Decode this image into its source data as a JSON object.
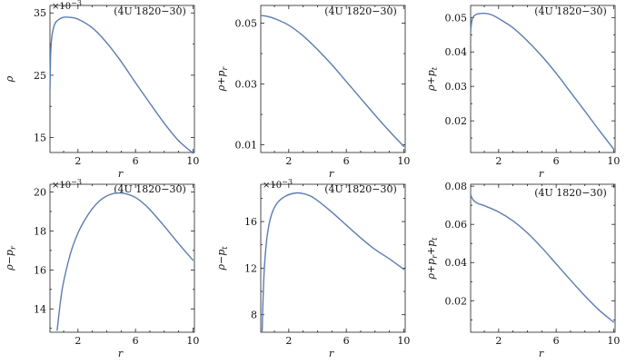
{
  "chart_data": [
    {
      "type": "line",
      "annotation": "(4U 1820−30)",
      "ylabel": "ρ",
      "xlabel": "r",
      "multiplier": "×10",
      "multiplier_exp": "−3",
      "xlim": [
        0.05,
        10.1
      ],
      "ylim": [
        12.6,
        36.2
      ],
      "xticks": [
        2,
        6,
        10
      ],
      "yticks": [
        15,
        25,
        35
      ],
      "series": [
        {
          "x": [
            0.05,
            0.1,
            0.2,
            0.4,
            0.7,
            1.0,
            1.4,
            2.0,
            3.0,
            4.0,
            5.0,
            6.0,
            7.0,
            8.0,
            9.0,
            10.0
          ],
          "y": [
            22.5,
            28.5,
            31.5,
            33.3,
            34.0,
            34.3,
            34.3,
            34.0,
            32.6,
            30.2,
            27.2,
            23.8,
            20.5,
            17.3,
            14.5,
            12.5
          ]
        }
      ]
    },
    {
      "type": "line",
      "annotation": "(4U 1820−30)",
      "ylabel": "ρ+p",
      "ylabel_sub": "r",
      "xlabel": "r",
      "xlim": [
        0.05,
        10.1
      ],
      "ylim": [
        0.0075,
        0.0558
      ],
      "xticks": [
        2,
        6,
        10
      ],
      "yticks": [
        0.01,
        0.03,
        0.05
      ],
      "series": [
        {
          "x": [
            0.05,
            0.5,
            1.0,
            2.0,
            3.0,
            4.0,
            5.0,
            6.0,
            7.0,
            8.0,
            9.0,
            10.0
          ],
          "y": [
            0.0525,
            0.0522,
            0.0515,
            0.0493,
            0.0458,
            0.0413,
            0.0363,
            0.0308,
            0.0253,
            0.0198,
            0.0145,
            0.0095
          ]
        }
      ]
    },
    {
      "type": "line",
      "annotation": "(4U 1820−30)",
      "ylabel": "ρ+p",
      "ylabel_sub": "t",
      "xlabel": "r",
      "xlim": [
        0.05,
        10.1
      ],
      "ylim": [
        0.0108,
        0.0535
      ],
      "xticks": [
        2,
        6,
        10
      ],
      "yticks": [
        0.02,
        0.03,
        0.04,
        0.05
      ],
      "series": [
        {
          "x": [
            0.05,
            0.1,
            0.2,
            0.5,
            1.0,
            1.5,
            2.0,
            3.0,
            4.0,
            5.0,
            6.0,
            7.0,
            8.0,
            9.0,
            10.0
          ],
          "y": [
            0.0458,
            0.048,
            0.05,
            0.051,
            0.0512,
            0.0508,
            0.0497,
            0.047,
            0.0432,
            0.0388,
            0.0338,
            0.0283,
            0.0228,
            0.0172,
            0.0118
          ]
        }
      ]
    },
    {
      "type": "line",
      "annotation": "(4U 1820−30)",
      "ylabel": "ρ−p",
      "ylabel_sub": "r",
      "xlabel": "r",
      "multiplier": "×10",
      "multiplier_exp": "−3",
      "xlim": [
        0.05,
        10.1
      ],
      "ylim": [
        12.8,
        20.4
      ],
      "xticks": [
        2,
        6,
        10
      ],
      "yticks": [
        14,
        16,
        18,
        20
      ],
      "series": [
        {
          "x": [
            0.55,
            0.8,
            1.0,
            1.5,
            2.0,
            2.5,
            3.0,
            3.5,
            4.0,
            4.5,
            5.0,
            5.5,
            6.0,
            6.5,
            7.0,
            8.0,
            9.0,
            10.0
          ],
          "y": [
            12.9,
            14.5,
            15.4,
            16.9,
            17.9,
            18.6,
            19.15,
            19.55,
            19.8,
            19.93,
            19.95,
            19.88,
            19.72,
            19.45,
            19.1,
            18.25,
            17.35,
            16.5
          ]
        }
      ]
    },
    {
      "type": "line",
      "annotation": "(4U 1820−30)",
      "ylabel": "ρ−p",
      "ylabel_sub": "t",
      "xlabel": "r",
      "multiplier": "×10",
      "multiplier_exp": "−3",
      "xlim": [
        0.05,
        10.1
      ],
      "ylim": [
        6.5,
        19.2
      ],
      "xticks": [
        2,
        6,
        10
      ],
      "yticks": [
        8,
        12,
        16
      ],
      "series": [
        {
          "x": [
            0.15,
            0.2,
            0.3,
            0.5,
            0.8,
            1.2,
            1.8,
            2.5,
            3.0,
            3.5,
            4.0,
            5.0,
            6.0,
            7.0,
            8.0,
            9.0,
            10.0
          ],
          "y": [
            6.6,
            9.0,
            12.0,
            14.8,
            16.6,
            17.6,
            18.2,
            18.45,
            18.4,
            18.2,
            17.8,
            16.8,
            15.7,
            14.6,
            13.6,
            12.8,
            11.9
          ]
        }
      ]
    },
    {
      "type": "line",
      "annotation": "(4U 1820−30)",
      "ylabel": "ρ+p",
      "ylabel_sub": "r",
      "ylabel_mid": "+p",
      "ylabel_sub2": "t",
      "xlabel": "r",
      "xlim": [
        0.05,
        10.1
      ],
      "ylim": [
        0.0035,
        0.081
      ],
      "xticks": [
        2,
        6,
        10
      ],
      "yticks": [
        0.02,
        0.04,
        0.06,
        0.08
      ],
      "series": [
        {
          "x": [
            0.05,
            0.1,
            0.3,
            0.6,
            1.0,
            2.0,
            3.0,
            4.0,
            5.0,
            6.0,
            7.0,
            8.0,
            9.0,
            10.0
          ],
          "y": [
            0.076,
            0.0745,
            0.0722,
            0.0708,
            0.0698,
            0.0665,
            0.0618,
            0.0555,
            0.0478,
            0.0393,
            0.0308,
            0.0225,
            0.015,
            0.0088
          ]
        }
      ]
    }
  ]
}
